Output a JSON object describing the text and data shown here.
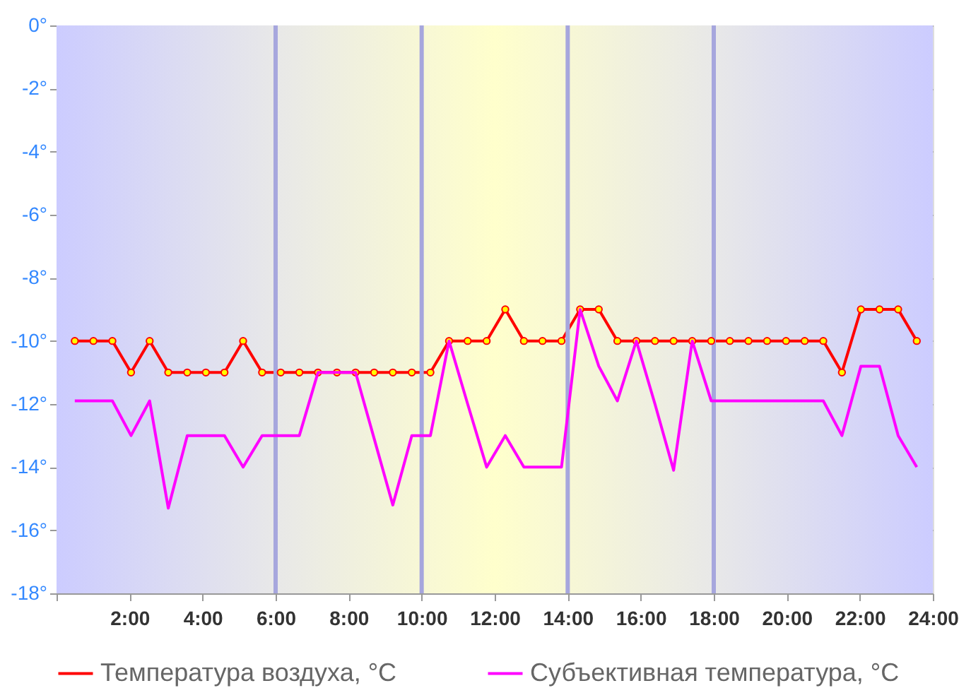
{
  "chart_data": {
    "type": "line",
    "x": [
      0.5,
      1.01,
      1.53,
      2.04,
      2.55,
      3.06,
      3.58,
      4.09,
      4.6,
      5.11,
      5.63,
      6.14,
      6.65,
      7.16,
      7.68,
      8.19,
      8.7,
      9.21,
      9.73,
      10.24,
      10.75,
      11.26,
      11.78,
      12.29,
      12.8,
      13.31,
      13.83,
      14.34,
      14.85,
      15.36,
      15.88,
      16.39,
      16.9,
      17.41,
      17.93,
      18.44,
      18.95,
      19.46,
      19.98,
      20.49,
      21.0,
      21.51,
      22.03,
      22.54,
      23.05,
      23.56
    ],
    "series": [
      {
        "name": "Температура воздуха, °C",
        "color": "#ff0000",
        "marker": "circle",
        "values": [
          -10,
          -10,
          -10,
          -11,
          -10,
          -11,
          -11,
          -11,
          -11,
          -10,
          -11,
          -11,
          -11,
          -11,
          -11,
          -11,
          -11,
          -11,
          -11,
          -11,
          -10,
          -10,
          -10,
          -9,
          -10,
          -10,
          -10,
          -9,
          -9,
          -10,
          -10,
          -10,
          -10,
          -10,
          -10,
          -10,
          -10,
          -10,
          -10,
          -10,
          -10,
          -11,
          -9,
          -9,
          -9,
          -10
        ]
      },
      {
        "name": "Субъективная температура, °C",
        "color": "#ff00ff",
        "marker": "none",
        "values": [
          -11.9,
          -11.9,
          -11.9,
          -13,
          -11.9,
          -15.3,
          -13,
          -13,
          -13,
          -14,
          -13,
          -13,
          -13,
          -11,
          -11,
          -11,
          -13.1,
          -15.2,
          -13,
          -13,
          -10,
          -12,
          -14,
          -13,
          -14,
          -14,
          -14,
          -9,
          -10.8,
          -11.9,
          -10,
          -12,
          -14.1,
          -10,
          -11.9,
          -11.9,
          -11.9,
          -11.9,
          -11.9,
          -11.9,
          -11.9,
          -13,
          -10.8,
          -10.8,
          -13,
          -14
        ]
      }
    ],
    "xlim": [
      0,
      24
    ],
    "xticks": [
      {
        "value": 0,
        "label": null
      },
      {
        "value": 2,
        "label": "2:00"
      },
      {
        "value": 4,
        "label": "4:00"
      },
      {
        "value": 6,
        "label": "6:00"
      },
      {
        "value": 8,
        "label": "8:00"
      },
      {
        "value": 10,
        "label": "10:00"
      },
      {
        "value": 12,
        "label": "12:00"
      },
      {
        "value": 14,
        "label": "14:00"
      },
      {
        "value": 16,
        "label": "16:00"
      },
      {
        "value": 18,
        "label": "18:00"
      },
      {
        "value": 20,
        "label": "20:00"
      },
      {
        "value": 22,
        "label": "22:00"
      },
      {
        "value": 24,
        "label": "24:00"
      }
    ],
    "ylim": [
      -18,
      0
    ],
    "yticks": [
      {
        "value": 0,
        "label": "0°"
      },
      {
        "value": -2,
        "label": "-2°"
      },
      {
        "value": -4,
        "label": "-4°"
      },
      {
        "value": -6,
        "label": "-6°"
      },
      {
        "value": -8,
        "label": "-8°"
      },
      {
        "value": -10,
        "label": "-10°"
      },
      {
        "value": -12,
        "label": "-12°"
      },
      {
        "value": -14,
        "label": "-14°"
      },
      {
        "value": -16,
        "label": "-16°"
      },
      {
        "value": -18,
        "label": "-18°"
      }
    ],
    "ref_lines": [
      {
        "axis": "x",
        "value": 6,
        "color": "#a6a6dd"
      },
      {
        "axis": "x",
        "value": 10,
        "color": "#a6a6dd"
      },
      {
        "axis": "x",
        "value": 14,
        "color": "#a6a6dd"
      },
      {
        "axis": "x",
        "value": 18,
        "color": "#a6a6dd"
      }
    ],
    "grid": "y",
    "legend": "bottom",
    "line_style": "solid"
  }
}
